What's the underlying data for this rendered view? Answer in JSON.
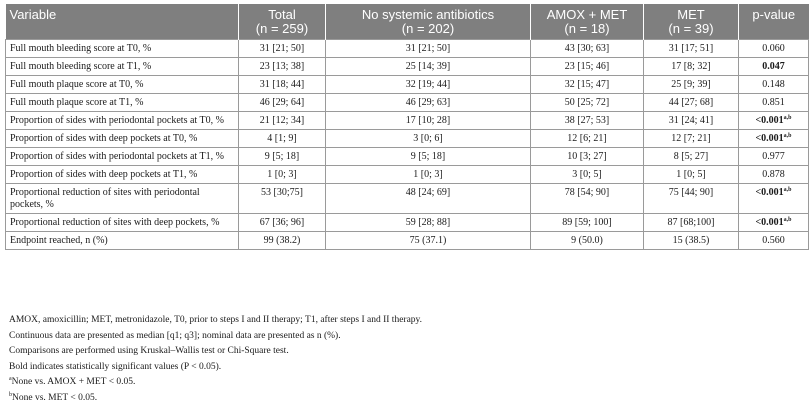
{
  "table": {
    "headers": [
      {
        "label": "Variable",
        "n": ""
      },
      {
        "label": "Total",
        "n": "(n = 259)"
      },
      {
        "label": "No systemic antibiotics",
        "n": "(n = 202)"
      },
      {
        "label": "AMOX + MET",
        "n": "(n = 18)"
      },
      {
        "label": "MET",
        "n": "(n = 39)"
      },
      {
        "label": "p-value",
        "n": ""
      }
    ],
    "rows": [
      {
        "variable": "Full mouth bleeding score at T0, %",
        "total": "31 [21; 50]",
        "no_abx": "31 [21; 50]",
        "amox_met": "43 [30; 63]",
        "met": "31 [17; 51]",
        "p": "0.060",
        "sup": ""
      },
      {
        "variable": "Full mouth bleeding score at T1, %",
        "total": "23 [13; 38]",
        "no_abx": "25 [14; 39]",
        "amox_met": "23 [15; 46]",
        "met": "17 [8; 32]",
        "p": "0.047",
        "sup": ""
      },
      {
        "variable": "Full mouth plaque score at T0, %",
        "total": "31 [18; 44]",
        "no_abx": "32 [19; 44]",
        "amox_met": "32 [15; 47]",
        "met": "25 [9; 39]",
        "p": "0.148",
        "sup": ""
      },
      {
        "variable": "Full mouth plaque score at T1, %",
        "total": "46 [29; 64]",
        "no_abx": "46 [29; 63]",
        "amox_met": "50 [25; 72]",
        "met": "44 [27; 68]",
        "p": "0.851",
        "sup": ""
      },
      {
        "variable": "Proportion of sides with periodontal pockets at T0, %",
        "total": "21 [12; 34]",
        "no_abx": "17 [10; 28]",
        "amox_met": "38 [27; 53]",
        "met": "31 [24; 41]",
        "p": "<0.001",
        "sup": "a,b"
      },
      {
        "variable": "Proportion of sides with deep pockets at T0, %",
        "total": "4 [1; 9]",
        "no_abx": "3 [0; 6]",
        "amox_met": "12 [6; 21]",
        "met": "12 [7; 21]",
        "p": "<0.001",
        "sup": "a,b"
      },
      {
        "variable": "Proportion of sides with periodontal pockets at T1, %",
        "total": "9 [5; 18]",
        "no_abx": "9 [5; 18]",
        "amox_met": "10 [3; 27]",
        "met": "8 [5; 27]",
        "p": "0.977",
        "sup": ""
      },
      {
        "variable": "Proportion of sides with deep pockets at T1, %",
        "total": "1 [0; 3]",
        "no_abx": "1 [0; 3]",
        "amox_met": "3 [0; 5]",
        "met": "1 [0; 5]",
        "p": "0.878",
        "sup": ""
      },
      {
        "variable": "Proportional reduction of sites with periodontal pockets, %",
        "total": "53 [30;75]",
        "no_abx": "48 [24; 69]",
        "amox_met": "78 [54; 90]",
        "met": "75 [44; 90]",
        "p": "<0.001",
        "sup": "a,b"
      },
      {
        "variable": "Proportional reduction of sites with deep pockets, %",
        "total": "67 [36; 96]",
        "no_abx": "59 [28; 88]",
        "amox_met": "89 [59; 100]",
        "met": "87 [68;100]",
        "p": "<0.001",
        "sup": "a,b"
      },
      {
        "variable": "Endpoint reached, n (%)",
        "total": "99 (38.2)",
        "no_abx": "75 (37.1)",
        "amox_met": "9 (50.0)",
        "met": "15 (38.5)",
        "p": "0.560",
        "sup": ""
      }
    ],
    "bold_p_rows": [
      1,
      4,
      5,
      8,
      9
    ]
  },
  "notes": {
    "abbrev": "AMOX, amoxicillin; MET, metronidazole, T0, prior to steps I and II therapy; T1, after steps I and II therapy.",
    "continuous": "Continuous data are presented as median [q1; q3]; nominal data are presented as n (%).",
    "comparisons": "Comparisons are performed using Kruskal–Wallis test or Chi-Square test.",
    "bold": "Bold indicates statistically significant values (P < 0.05).",
    "a_mark": "a",
    "a_text": "None vs. AMOX + MET < 0.05.",
    "b_mark": "b",
    "b_text": "None vs. MET < 0.05."
  },
  "colors": {
    "header_bg": "#7f7f7f",
    "header_text": "#ffffff",
    "grid": "#9a9a9a"
  }
}
